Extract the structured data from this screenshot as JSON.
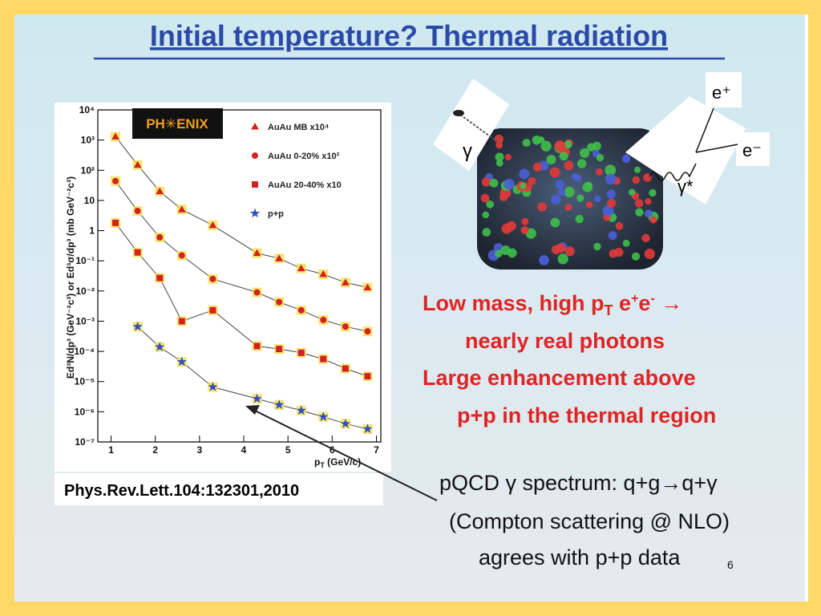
{
  "title": "Initial temperature? Thermal radiation",
  "citation": "Phys.Rev.Lett.104:132301,2010",
  "diagram_labels": [
    "γ",
    "e⁺",
    "e⁻",
    "γ*"
  ],
  "red_text": [
    [
      "Low mass, high p",
      "T",
      " e",
      "+",
      "e",
      "-",
      " →"
    ],
    "nearly real photons",
    "Large enhancement above",
    "p+p in the thermal region"
  ],
  "black_text": [
    "pQCD γ spectrum: q+g→q+γ",
    "(Compton scattering @ NLO)",
    "agrees with p+p data"
  ],
  "page_number": "6",
  "chart_data": {
    "type": "scatter",
    "logo": "PH✳ENIX",
    "x_label": [
      "p",
      "T",
      " (GeV/c)"
    ],
    "y_label": "Ed³N/dp³ (GeV⁻²c³) or Ed³σ/dp³ (mb GeV⁻²c³)",
    "log_y": true,
    "xlim": [
      0.7,
      7.1
    ],
    "ylim": [
      1e-07,
      10000
    ],
    "xticks": [
      1,
      2,
      3,
      4,
      5,
      6,
      7
    ],
    "yticks": [
      {
        "value": 10000,
        "label": "10⁴"
      },
      {
        "value": 1000,
        "label": "10³"
      },
      {
        "value": 100,
        "label": "10²"
      },
      10,
      1,
      {
        "value": 0.1,
        "label": "10⁻¹"
      },
      {
        "value": 0.01,
        "label": "10⁻²"
      },
      {
        "value": 0.001,
        "label": "10⁻³"
      },
      {
        "value": 0.0001,
        "label": "10⁻⁴"
      },
      {
        "value": 1e-05,
        "label": "10⁻⁵"
      },
      {
        "value": 1e-06,
        "label": "10⁻⁶"
      },
      {
        "value": 1e-07,
        "label": "10⁻⁷"
      }
    ],
    "x": [
      1.1,
      1.6,
      2.1,
      2.6,
      3.3,
      4.3,
      4.8,
      5.3,
      5.8,
      6.3,
      6.8
    ],
    "series": [
      {
        "name": "AuAu MB x10⁴",
        "color": "#d42020",
        "marker": "triangle",
        "values": [
          1300,
          150,
          20,
          5,
          1.5,
          0.18,
          0.12,
          0.056,
          0.036,
          0.019,
          0.013
        ]
      },
      {
        "name": "AuAu 0-20% x10²",
        "color": "#d42020",
        "marker": "circle",
        "values": [
          44,
          4.5,
          0.6,
          0.15,
          0.025,
          0.009,
          0.0043,
          0.0023,
          0.0011,
          0.00066,
          0.00046
        ]
      },
      {
        "name": "AuAu 20-40% x10",
        "color": "#d42020",
        "marker": "square",
        "values": [
          1.8,
          0.19,
          0.027,
          0.001,
          0.0023,
          0.00015,
          0.00012,
          9e-05,
          5.6e-05,
          2.7e-05,
          1.5e-05
        ]
      },
      {
        "name": "p+p",
        "color": "#3050c0",
        "marker": "star",
        "values": [
          null,
          0.00066,
          0.00014,
          4.5e-05,
          6.6e-06,
          2.7e-06,
          1.7e-06,
          1.1e-06,
          6.8e-07,
          4e-07,
          2.7e-07
        ]
      }
    ]
  }
}
